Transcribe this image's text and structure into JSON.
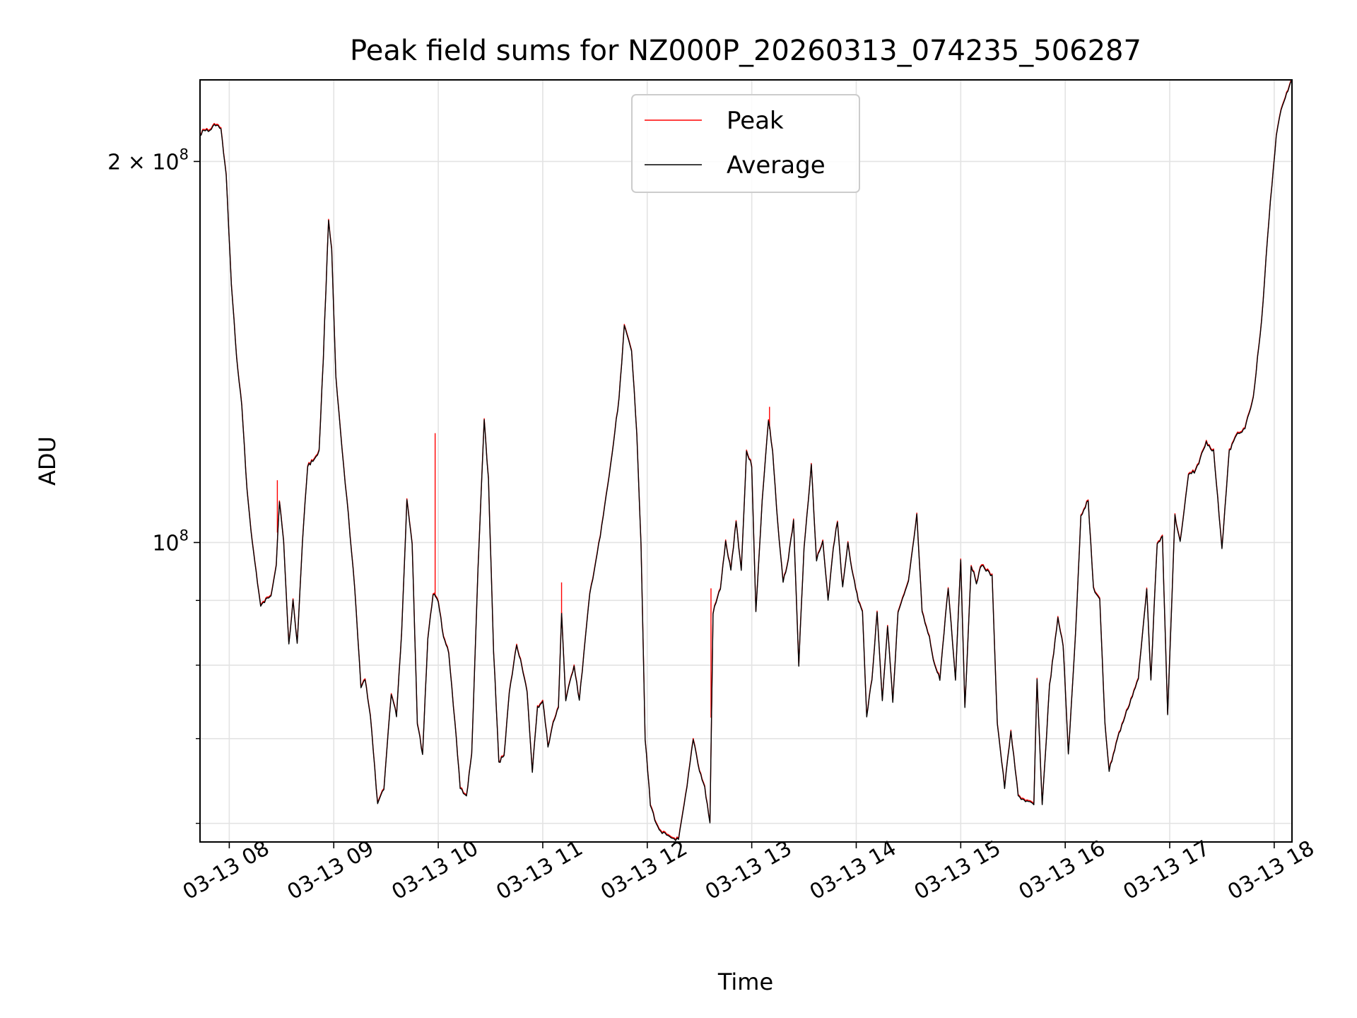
{
  "chart_data": {
    "type": "line",
    "title": "Peak field sums for NZ000P_20260313_074235_506287",
    "xlabel": "Time",
    "ylabel": "ADU",
    "yscale": "log",
    "ylim": [
      58000000,
      232000000
    ],
    "xlim_hours": [
      7.72,
      18.17
    ],
    "grid": true,
    "legend_position": "top-center",
    "x_ticks": [
      {
        "hour": 8,
        "label": "03-13 08"
      },
      {
        "hour": 9,
        "label": "03-13 09"
      },
      {
        "hour": 10,
        "label": "03-13 10"
      },
      {
        "hour": 11,
        "label": "03-13 11"
      },
      {
        "hour": 12,
        "label": "03-13 12"
      },
      {
        "hour": 13,
        "label": "03-13 13"
      },
      {
        "hour": 14,
        "label": "03-13 14"
      },
      {
        "hour": 15,
        "label": "03-13 15"
      },
      {
        "hour": 16,
        "label": "03-13 16"
      },
      {
        "hour": 17,
        "label": "03-13 17"
      },
      {
        "hour": 18,
        "label": "03-13 18"
      }
    ],
    "y_major_ticks": [
      {
        "value": 100000000,
        "base": "10",
        "exp": "8"
      },
      {
        "value": 200000000,
        "base": "2 × 10",
        "exp": "8"
      }
    ],
    "y_minor_ticks": [
      60000000,
      70000000,
      80000000,
      90000000
    ],
    "series": [
      {
        "name": "Peak",
        "color": "#ff0000",
        "spikes": [
          {
            "hour": 8.46,
            "value": 112000000
          },
          {
            "hour": 9.97,
            "value": 122000000
          },
          {
            "hour": 11.18,
            "value": 93000000
          },
          {
            "hour": 12.61,
            "value": 92000000
          },
          {
            "hour": 13.17,
            "value": 128000000
          },
          {
            "hour": 15.73,
            "value": 78000000
          }
        ]
      },
      {
        "name": "Average",
        "color": "#000000",
        "points": [
          [
            7.72,
            210000000
          ],
          [
            7.77,
            212000000
          ],
          [
            7.8,
            211000000
          ],
          [
            7.87,
            214000000
          ],
          [
            7.92,
            212000000
          ],
          [
            7.97,
            195000000
          ],
          [
            8.02,
            160000000
          ],
          [
            8.07,
            140000000
          ],
          [
            8.12,
            128000000
          ],
          [
            8.17,
            110000000
          ],
          [
            8.22,
            100000000
          ],
          [
            8.27,
            93000000
          ],
          [
            8.3,
            89000000
          ],
          [
            8.35,
            90000000
          ],
          [
            8.4,
            91000000
          ],
          [
            8.45,
            96000000
          ],
          [
            8.48,
            108000000
          ],
          [
            8.52,
            100000000
          ],
          [
            8.57,
            83000000
          ],
          [
            8.61,
            90000000
          ],
          [
            8.65,
            83000000
          ],
          [
            8.7,
            100000000
          ],
          [
            8.75,
            115000000
          ],
          [
            8.8,
            116000000
          ],
          [
            8.86,
            118000000
          ],
          [
            8.9,
            140000000
          ],
          [
            8.95,
            180000000
          ],
          [
            8.98,
            170000000
          ],
          [
            9.02,
            135000000
          ],
          [
            9.08,
            118000000
          ],
          [
            9.14,
            105000000
          ],
          [
            9.2,
            92000000
          ],
          [
            9.26,
            77000000
          ],
          [
            9.3,
            78000000
          ],
          [
            9.35,
            73000000
          ],
          [
            9.42,
            62000000
          ],
          [
            9.48,
            64000000
          ],
          [
            9.55,
            76000000
          ],
          [
            9.6,
            73000000
          ],
          [
            9.65,
            85000000
          ],
          [
            9.7,
            108000000
          ],
          [
            9.75,
            100000000
          ],
          [
            9.8,
            72000000
          ],
          [
            9.85,
            68000000
          ],
          [
            9.9,
            84000000
          ],
          [
            9.95,
            91000000
          ],
          [
            10.0,
            90000000
          ],
          [
            10.05,
            84000000
          ],
          [
            10.1,
            82000000
          ],
          [
            10.16,
            72000000
          ],
          [
            10.21,
            64000000
          ],
          [
            10.27,
            63000000
          ],
          [
            10.32,
            68000000
          ],
          [
            10.38,
            95000000
          ],
          [
            10.44,
            125000000
          ],
          [
            10.48,
            112000000
          ],
          [
            10.53,
            82000000
          ],
          [
            10.58,
            67000000
          ],
          [
            10.63,
            68000000
          ],
          [
            10.68,
            76000000
          ],
          [
            10.75,
            83000000
          ],
          [
            10.8,
            80000000
          ],
          [
            10.85,
            76000000
          ],
          [
            10.9,
            66000000
          ],
          [
            10.95,
            74000000
          ],
          [
            11.0,
            75000000
          ],
          [
            11.05,
            69000000
          ],
          [
            11.1,
            72000000
          ],
          [
            11.15,
            74000000
          ],
          [
            11.18,
            88000000
          ],
          [
            11.22,
            75000000
          ],
          [
            11.3,
            80000000
          ],
          [
            11.35,
            75000000
          ],
          [
            11.45,
            91000000
          ],
          [
            11.55,
            101000000
          ],
          [
            11.65,
            115000000
          ],
          [
            11.73,
            130000000
          ],
          [
            11.78,
            148000000
          ],
          [
            11.85,
            142000000
          ],
          [
            11.9,
            122000000
          ],
          [
            11.94,
            100000000
          ],
          [
            11.98,
            70000000
          ],
          [
            12.03,
            62000000
          ],
          [
            12.1,
            59500000
          ],
          [
            12.2,
            58500000
          ],
          [
            12.3,
            58200000
          ],
          [
            12.38,
            64000000
          ],
          [
            12.44,
            70000000
          ],
          [
            12.5,
            66000000
          ],
          [
            12.55,
            64000000
          ],
          [
            12.6,
            60000000
          ],
          [
            12.63,
            88000000
          ],
          [
            12.7,
            92000000
          ],
          [
            12.75,
            100000000
          ],
          [
            12.8,
            95000000
          ],
          [
            12.85,
            104000000
          ],
          [
            12.9,
            95000000
          ],
          [
            12.95,
            118000000
          ],
          [
            13.0,
            115000000
          ],
          [
            13.04,
            88000000
          ],
          [
            13.1,
            108000000
          ],
          [
            13.16,
            125000000
          ],
          [
            13.2,
            118000000
          ],
          [
            13.25,
            103000000
          ],
          [
            13.3,
            93000000
          ],
          [
            13.35,
            97000000
          ],
          [
            13.4,
            104000000
          ],
          [
            13.45,
            80000000
          ],
          [
            13.5,
            99000000
          ],
          [
            13.57,
            115000000
          ],
          [
            13.62,
            97000000
          ],
          [
            13.68,
            100000000
          ],
          [
            13.73,
            90000000
          ],
          [
            13.78,
            99000000
          ],
          [
            13.82,
            104000000
          ],
          [
            13.87,
            92000000
          ],
          [
            13.92,
            100000000
          ],
          [
            13.97,
            94000000
          ],
          [
            14.02,
            90000000
          ],
          [
            14.06,
            88000000
          ],
          [
            14.1,
            73000000
          ],
          [
            14.15,
            78000000
          ],
          [
            14.2,
            88000000
          ],
          [
            14.25,
            75000000
          ],
          [
            14.3,
            86000000
          ],
          [
            14.35,
            75000000
          ],
          [
            14.4,
            88000000
          ],
          [
            14.5,
            93000000
          ],
          [
            14.58,
            105000000
          ],
          [
            14.63,
            88000000
          ],
          [
            14.7,
            84000000
          ],
          [
            14.75,
            80000000
          ],
          [
            14.8,
            78000000
          ],
          [
            14.88,
            92000000
          ],
          [
            14.95,
            78000000
          ],
          [
            15.0,
            97000000
          ],
          [
            15.04,
            74000000
          ],
          [
            15.1,
            96000000
          ],
          [
            15.15,
            93000000
          ],
          [
            15.2,
            96000000
          ],
          [
            15.3,
            94000000
          ],
          [
            15.35,
            72000000
          ],
          [
            15.42,
            64000000
          ],
          [
            15.48,
            71000000
          ],
          [
            15.55,
            63000000
          ],
          [
            15.62,
            62500000
          ],
          [
            15.7,
            62000000
          ],
          [
            15.73,
            78000000
          ],
          [
            15.78,
            62000000
          ],
          [
            15.85,
            77000000
          ],
          [
            15.93,
            87000000
          ],
          [
            15.98,
            83000000
          ],
          [
            16.03,
            68000000
          ],
          [
            16.1,
            85000000
          ],
          [
            16.15,
            105000000
          ],
          [
            16.22,
            108000000
          ],
          [
            16.27,
            92000000
          ],
          [
            16.33,
            90000000
          ],
          [
            16.38,
            72000000
          ],
          [
            16.42,
            66000000
          ],
          [
            16.5,
            70000000
          ],
          [
            16.6,
            74000000
          ],
          [
            16.7,
            78000000
          ],
          [
            16.78,
            92000000
          ],
          [
            16.82,
            78000000
          ],
          [
            16.88,
            100000000
          ],
          [
            16.93,
            101000000
          ],
          [
            16.98,
            73000000
          ],
          [
            17.05,
            105000000
          ],
          [
            17.1,
            100000000
          ],
          [
            17.18,
            113000000
          ],
          [
            17.25,
            114000000
          ],
          [
            17.35,
            120000000
          ],
          [
            17.42,
            118000000
          ],
          [
            17.5,
            99000000
          ],
          [
            17.57,
            118000000
          ],
          [
            17.65,
            122000000
          ],
          [
            17.72,
            123000000
          ],
          [
            17.8,
            130000000
          ],
          [
            17.88,
            150000000
          ],
          [
            17.95,
            180000000
          ],
          [
            18.02,
            210000000
          ],
          [
            18.08,
            222000000
          ],
          [
            18.17,
            232000000
          ]
        ]
      }
    ]
  }
}
